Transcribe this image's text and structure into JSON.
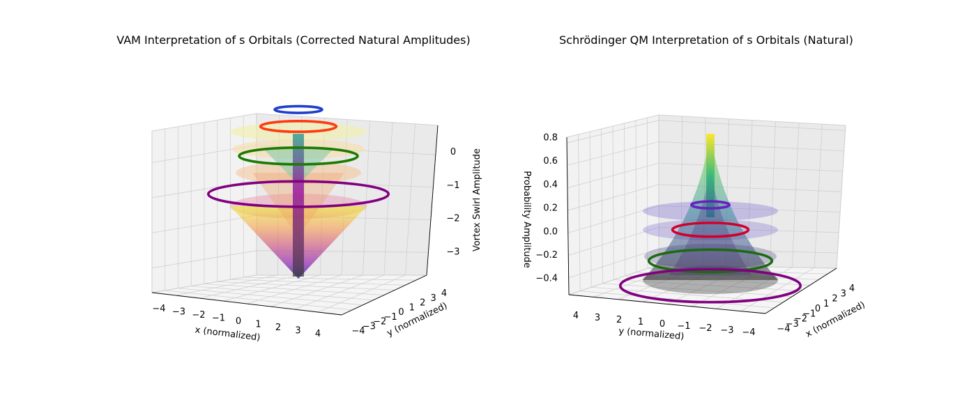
{
  "chart_data": [
    {
      "type": "surface3d",
      "title": "VAM Interpretation of s Orbitals (Corrected Natural Amplitudes)",
      "xlabel": "x (normalized)",
      "ylabel": "y (normalized)",
      "zlabel": "Vortex Swirl Amplitude",
      "x_ticks": [
        "−4",
        "−3",
        "−2",
        "−1",
        "0",
        "1",
        "2",
        "3",
        "4"
      ],
      "y_ticks": [
        "−4",
        "−3",
        "−2",
        "−1",
        "0",
        "1",
        "2",
        "3",
        "4"
      ],
      "z_ticks": [
        "0",
        "−1",
        "−2",
        "−3"
      ],
      "xlim": [
        -4,
        4
      ],
      "ylim": [
        -4,
        4
      ],
      "zlim": [
        -3.7,
        0.9
      ],
      "colormap": "plasma",
      "surface": "inverted cone, apex z ≈ -3.6 at center",
      "rings": [
        {
          "n": 1,
          "radius": 1.0,
          "z": 0.55,
          "color": "#1f3fcc"
        },
        {
          "n": 2,
          "radius": 1.6,
          "z": 0.15,
          "color": "#ff3a10"
        },
        {
          "n": 3,
          "radius": 2.5,
          "z": -0.55,
          "color": "#1d7a00"
        },
        {
          "n": 4,
          "radius": 3.8,
          "z": -1.45,
          "color": "#800080"
        }
      ]
    },
    {
      "type": "surface3d",
      "title": "Schrödinger QM Interpretation of s Orbitals (Natural)",
      "xlabel": "x (normalized)",
      "ylabel": "y (normalized)",
      "zlabel": "Probability Amplitude",
      "x_ticks": [
        "−4",
        "−3",
        "−2",
        "−1",
        "0",
        "1",
        "2",
        "3",
        "4"
      ],
      "y_ticks": [
        "4",
        "3",
        "2",
        "1",
        "0",
        "−1",
        "−2",
        "−3",
        "−4"
      ],
      "z_ticks": [
        "0.8",
        "0.6",
        "0.4",
        "0.2",
        "0.0",
        "−0.2",
        "−0.4"
      ],
      "xlim": [
        -4,
        4
      ],
      "ylim": [
        -4,
        4
      ],
      "zlim": [
        -0.55,
        0.85
      ],
      "colormap": "viridis",
      "surface": "peaked cone, apex z ≈ 0.82 at center",
      "rings": [
        {
          "n": 1,
          "radius": 0.8,
          "z": 0.2,
          "color": "#6a1fc0"
        },
        {
          "n": 2,
          "radius": 1.6,
          "z": 0.0,
          "color": "#d0002a"
        },
        {
          "n": 3,
          "radius": 2.6,
          "z": -0.25,
          "color": "#1d6a10"
        },
        {
          "n": 4,
          "radius": 3.8,
          "z": -0.45,
          "color": "#800080"
        }
      ]
    }
  ]
}
